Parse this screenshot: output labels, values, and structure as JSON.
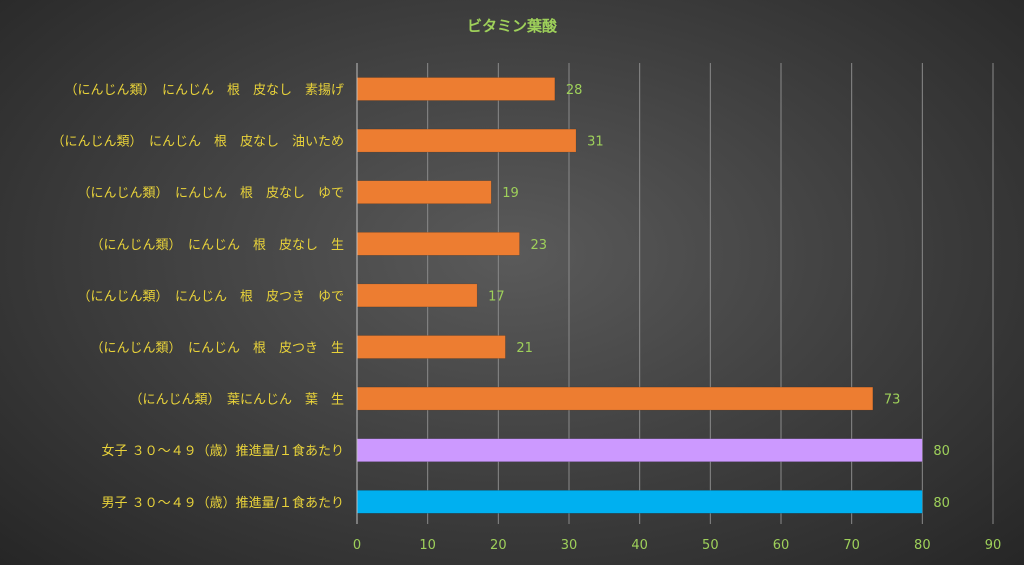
{
  "chart_data": {
    "type": "bar",
    "orientation": "horizontal",
    "title": "ビタミン葉酸",
    "categories": [
      "（にんじん類）　にんじん　根　皮なし　素揚げ",
      "（にんじん類）　にんじん　根　皮なし　油いため",
      "（にんじん類）　にんじん　根　皮なし　ゆで",
      "（にんじん類）　にんじん　根　皮なし　生",
      "（にんじん類）　にんじん　根　皮つき　ゆで",
      "（にんじん類）　にんじん　根　皮つき　生",
      "（にんじん類）　葉にんじん　葉　生",
      "女子 ３０～４９（歳）推進量/１食あたり",
      "男子 ３０～４９（歳）推進量/１食あたり"
    ],
    "values": [
      28,
      31,
      19,
      23,
      17,
      21,
      73,
      80,
      80
    ],
    "bar_colors": [
      "#ed7d31",
      "#ed7d31",
      "#ed7d31",
      "#ed7d31",
      "#ed7d31",
      "#ed7d31",
      "#ed7d31",
      "#cc99ff",
      "#00b0f0"
    ],
    "xlim": [
      0,
      90
    ],
    "xticks": [
      0,
      10,
      20,
      30,
      40,
      50,
      60,
      70,
      80,
      90
    ],
    "grid": true,
    "legend": "none",
    "colors": {
      "title": "#9ed05a",
      "tick": "#9ed05a",
      "category": "#e8d23a",
      "value_label": "#9ed05a",
      "gridline": "#8a8a8a",
      "axis": "#bfbfbf"
    }
  }
}
